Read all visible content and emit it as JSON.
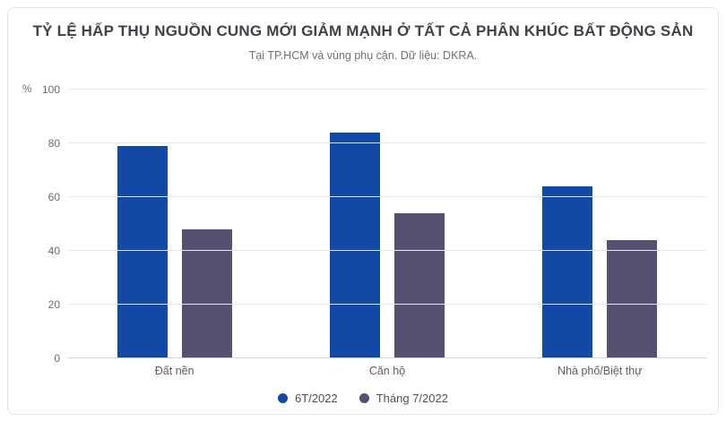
{
  "header": {
    "title": "TỶ LỆ HẤP THỤ NGUỒN CUNG MỚI GIẢM MẠNH Ở TẤT CẢ PHÂN KHÚC BẤT ĐỘNG SẢN",
    "subtitle": "Tại TP.HCM và vùng phụ cận. Dữ liệu: DKRA."
  },
  "chart_data": {
    "type": "bar",
    "title": "TỶ LỆ HẤP THỤ NGUỒN CUNG MỚI GIẢM MẠNH Ở TẤT CẢ PHÂN KHÚC BẤT ĐỘNG SẢN",
    "subtitle": "Tại TP.HCM và vùng phụ cận. Dữ liệu: DKRA.",
    "categories": [
      "Đất nền",
      "Căn hộ",
      "Nhà phố/Biệt thự"
    ],
    "series": [
      {
        "name": "6T/2022",
        "color": "#1249a5",
        "values": [
          79,
          84,
          64
        ]
      },
      {
        "name": "Tháng 7/2022",
        "color": "#564f70",
        "values": [
          48,
          54,
          44
        ]
      }
    ],
    "xlabel": "",
    "ylabel": "%",
    "ylim": [
      0,
      100
    ],
    "yticks": [
      0,
      20,
      40,
      60,
      80,
      100
    ],
    "grid": true,
    "legend_position": "bottom"
  }
}
